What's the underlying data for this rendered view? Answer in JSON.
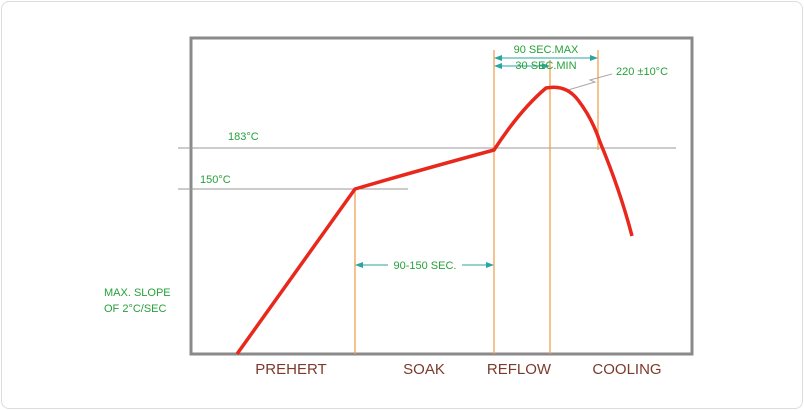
{
  "temperatures": {
    "t183": "183°C",
    "t150": "150°C",
    "peak": "220 ±10°C"
  },
  "times": {
    "max": "90 SEC.MAX",
    "min": "30 SEC.MIN",
    "soak": "90-150 SEC."
  },
  "slope": [
    "MAX. SLOPE",
    "OF 2°C/SEC"
  ],
  "phases": [
    "PREHERT",
    "SOAK",
    "REFLOW",
    "COOLING"
  ]
}
